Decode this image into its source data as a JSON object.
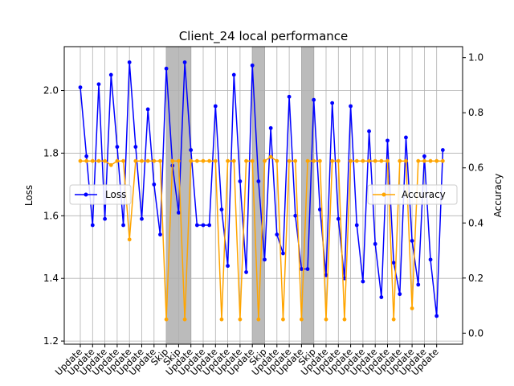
{
  "chart_data": {
    "type": "line",
    "title": "Client_24 local performance",
    "ylabel_left": "Loss",
    "ylabel_right": "Accuracy",
    "ylim_left": [
      1.19,
      2.14
    ],
    "ylim_right": [
      -0.04,
      1.04
    ],
    "yticks_left": [
      1.2,
      1.4,
      1.6,
      1.8,
      2.0
    ],
    "yticks_right": [
      0.0,
      0.2,
      0.4,
      0.6,
      0.8,
      1.0
    ],
    "grid": true,
    "legend_left": {
      "placement": "center-left",
      "label": "Loss"
    },
    "legend_right": {
      "placement": "center-right",
      "label": "Accuracy"
    },
    "tick_labels": [
      "Update",
      "Update",
      "Update",
      "Update",
      "Update",
      "Update",
      "Update",
      "Skip",
      "Skip",
      "Update",
      "Update",
      "Update",
      "Update",
      "Update",
      "Update",
      "Skip",
      "Update",
      "Update",
      "Update",
      "Skip",
      "Update",
      "Update",
      "Update",
      "Update",
      "Update",
      "Update",
      "Update",
      "Update",
      "Update",
      "Update"
    ],
    "skip_spans": [
      [
        7,
        9
      ],
      [
        14,
        15
      ],
      [
        18,
        19
      ]
    ],
    "series": [
      {
        "name": "Loss",
        "color": "#0000ff",
        "x": [
          0,
          0.5,
          1,
          1.5,
          2,
          2.5,
          3,
          3.5,
          4,
          4.5,
          5,
          5.5,
          6,
          6.5,
          7,
          7.5,
          8,
          8.5,
          9,
          9.5,
          10,
          10.5,
          11,
          11.5,
          12,
          12.5,
          13,
          13.5,
          14,
          14.5,
          15,
          15.5,
          16,
          16.5,
          17,
          17.5,
          18,
          18.5,
          19,
          19.5,
          20,
          20.5,
          21,
          21.5,
          22,
          22.5,
          23,
          23.5,
          24,
          24.5,
          25,
          25.5,
          26,
          26.5,
          27,
          27.5,
          28,
          28.5,
          29,
          29.5
        ],
        "values": [
          2.01,
          1.79,
          1.57,
          2.02,
          1.59,
          2.05,
          1.82,
          1.57,
          2.09,
          1.82,
          1.59,
          1.94,
          1.7,
          1.54,
          2.07,
          1.76,
          1.61,
          2.09,
          1.81,
          1.57,
          1.57,
          1.57,
          1.95,
          1.62,
          1.44,
          2.05,
          1.71,
          1.42,
          2.08,
          1.71,
          1.46,
          1.88,
          1.54,
          1.48,
          1.98,
          1.6,
          1.43,
          1.43,
          1.97,
          1.62,
          1.41,
          1.96,
          1.59,
          1.4,
          1.95,
          1.57,
          1.39,
          1.87,
          1.51,
          1.34,
          1.84,
          1.45,
          1.35,
          1.85,
          1.52,
          1.38,
          1.79,
          1.46,
          1.28,
          1.81
        ]
      },
      {
        "name": "Accuracy",
        "color": "#ffa500",
        "x": [
          0,
          0.5,
          1,
          1.5,
          2,
          2.5,
          3,
          3.5,
          4,
          4.5,
          5,
          5.5,
          6,
          6.5,
          7,
          7.5,
          8,
          8.5,
          9,
          9.5,
          10,
          10.5,
          11,
          11.5,
          12,
          12.5,
          13,
          13.5,
          14,
          14.5,
          15,
          15.5,
          16,
          16.5,
          17,
          17.5,
          18,
          18.5,
          19,
          19.5,
          20,
          20.5,
          21,
          21.5,
          22,
          22.5,
          23,
          23.5,
          24,
          24.5,
          25,
          25.5,
          26,
          26.5,
          27,
          27.5,
          28,
          28.5,
          29,
          29.5
        ],
        "values": [
          0.625,
          0.625,
          0.625,
          0.625,
          0.625,
          0.61,
          0.625,
          0.625,
          0.34,
          0.625,
          0.625,
          0.625,
          0.625,
          0.625,
          0.05,
          0.625,
          0.625,
          0.05,
          0.625,
          0.625,
          0.625,
          0.625,
          0.625,
          0.05,
          0.625,
          0.625,
          0.05,
          0.625,
          0.625,
          0.05,
          0.625,
          0.64,
          0.625,
          0.05,
          0.625,
          0.625,
          0.05,
          0.625,
          0.625,
          0.625,
          0.05,
          0.625,
          0.625,
          0.05,
          0.625,
          0.625,
          0.625,
          0.625,
          0.625,
          0.625,
          0.625,
          0.05,
          0.625,
          0.625,
          0.09,
          0.625,
          0.625,
          0.625,
          0.625,
          0.625
        ]
      }
    ]
  }
}
